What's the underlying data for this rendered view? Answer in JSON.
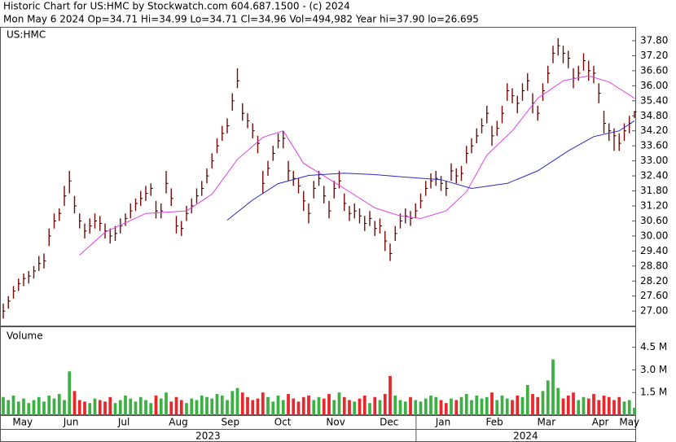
{
  "chart_data": {
    "type": "ohlc",
    "title": "Historic Chart for US:HMC by Stockwatch.com 604.687.1500 - (c) 2024",
    "subtitle": "Mon May  6 2024  Op=34.71  Hi=34.99  Lo=34.71  Cl=34.96  Vol=494,982  Year hi=37.90  lo=26.695",
    "symbol": "US:HMC",
    "volume_label": "Volume",
    "xlim": [
      -0.64,
      124.16
    ],
    "xticks": [
      {
        "value": 3.8,
        "label": "May"
      },
      {
        "value": 13.3,
        "label": "Jun"
      },
      {
        "value": 23.7,
        "label": "Jul"
      },
      {
        "value": 34.4,
        "label": "Aug"
      },
      {
        "value": 44.6,
        "label": "Sep"
      },
      {
        "value": 54.9,
        "label": "Oct"
      },
      {
        "value": 65.3,
        "label": "Nov"
      },
      {
        "value": 75.8,
        "label": "Dec"
      },
      {
        "value": 86.4,
        "label": "Jan"
      },
      {
        "value": 96.5,
        "label": "Feb"
      },
      {
        "value": 106.7,
        "label": "Mar"
      },
      {
        "value": 117.3,
        "label": "Apr"
      },
      {
        "value": 123.0,
        "label": "May"
      }
    ],
    "years": [
      {
        "value": -0.64,
        "label": "2023"
      },
      {
        "value": 81.1,
        "label": "2024"
      }
    ],
    "ylim": [
      26.42,
      38.32
    ],
    "yticks": [
      {
        "value": 27.0,
        "label": "27.00"
      },
      {
        "value": 27.6,
        "label": "27.60"
      },
      {
        "value": 28.2,
        "label": "28.20"
      },
      {
        "value": 28.8,
        "label": "28.80"
      },
      {
        "value": 29.4,
        "label": "29.40"
      },
      {
        "value": 30.0,
        "label": "30.00"
      },
      {
        "value": 30.6,
        "label": "30.60"
      },
      {
        "value": 31.2,
        "label": "31.20"
      },
      {
        "value": 31.8,
        "label": "31.80"
      },
      {
        "value": 32.4,
        "label": "32.40"
      },
      {
        "value": 33.0,
        "label": "33.00"
      },
      {
        "value": 33.6,
        "label": "33.60"
      },
      {
        "value": 34.2,
        "label": "34.20"
      },
      {
        "value": 34.8,
        "label": "34.80"
      },
      {
        "value": 35.4,
        "label": "35.40"
      },
      {
        "value": 36.0,
        "label": "36.00"
      },
      {
        "value": 36.6,
        "label": "36.60"
      },
      {
        "value": 37.2,
        "label": "37.20"
      },
      {
        "value": 37.8,
        "label": "37.80"
      }
    ],
    "color": "#7a0a0a",
    "closes": [
      27.0,
      27.4,
      27.8,
      28.1,
      28.3,
      28.4,
      28.6,
      28.9,
      29.0,
      30.0,
      30.6,
      30.9,
      31.6,
      32.2,
      31.2,
      30.6,
      30.2,
      30.4,
      30.6,
      30.5,
      30.2,
      30.0,
      30.1,
      30.4,
      30.7,
      31.0,
      31.3,
      31.5,
      31.7,
      31.9,
      31.0,
      31.0,
      32.1,
      31.5,
      30.4,
      30.3,
      30.9,
      31.2,
      31.6,
      31.9,
      32.4,
      33.0,
      33.6,
      34.1,
      34.4,
      35.4,
      36.2,
      34.9,
      34.6,
      34.2,
      33.7,
      32.1,
      32.7,
      33.3,
      33.8,
      33.9,
      32.6,
      32.3,
      32.0,
      31.4,
      30.9,
      31.9,
      32.3,
      31.6,
      31.0,
      31.9,
      32.2,
      31.3,
      30.9,
      31.0,
      30.8,
      30.5,
      30.7,
      30.3,
      30.4,
      29.8,
      29.3,
      30.1,
      30.6,
      30.8,
      30.7,
      31.0,
      31.4,
      31.9,
      32.2,
      32.3,
      32.1,
      31.9,
      32.6,
      32.4,
      32.5,
      33.3,
      33.6,
      34.0,
      34.4,
      34.9,
      34.0,
      34.3,
      34.9,
      35.8,
      35.6,
      35.3,
      35.8,
      36.2,
      35.3,
      34.9,
      35.8,
      36.5,
      37.3,
      37.6,
      37.3,
      37.1,
      36.3,
      36.5,
      37.0,
      36.6,
      36.5,
      35.7,
      34.5,
      34.2,
      34.0,
      33.7,
      34.2,
      34.5,
      34.96
    ],
    "highs": [
      27.3,
      27.6,
      28.0,
      28.3,
      28.5,
      28.6,
      28.8,
      29.2,
      29.3,
      30.3,
      30.9,
      31.1,
      32.0,
      32.6,
      31.6,
      30.9,
      30.5,
      30.7,
      30.9,
      30.8,
      30.5,
      30.3,
      30.4,
      30.7,
      30.9,
      31.3,
      31.5,
      31.8,
      32.0,
      32.1,
      31.4,
      31.3,
      32.6,
      31.9,
      30.8,
      30.6,
      31.2,
      31.5,
      31.9,
      32.2,
      32.7,
      33.3,
      33.9,
      34.4,
      34.7,
      35.7,
      36.7,
      35.3,
      34.9,
      34.5,
      34.0,
      32.6,
      33.0,
      33.6,
      34.1,
      34.2,
      33.0,
      32.6,
      32.3,
      31.8,
      31.3,
      32.2,
      32.6,
      32.0,
      31.4,
      32.2,
      32.6,
      31.7,
      31.2,
      31.3,
      31.1,
      30.8,
      31.0,
      30.6,
      30.7,
      30.2,
      29.7,
      30.4,
      30.9,
      31.1,
      31.0,
      31.3,
      31.7,
      32.2,
      32.5,
      32.6,
      32.4,
      32.2,
      32.9,
      32.7,
      32.8,
      33.6,
      33.9,
      34.3,
      34.7,
      35.2,
      34.4,
      34.6,
      35.2,
      36.1,
      35.9,
      35.6,
      36.1,
      36.5,
      35.7,
      35.2,
      36.1,
      36.8,
      37.6,
      37.9,
      37.6,
      37.4,
      36.7,
      36.8,
      37.3,
      37.0,
      36.8,
      36.1,
      35.0,
      34.5,
      34.3,
      34.1,
      34.5,
      34.8,
      34.99
    ],
    "lows": [
      26.7,
      27.1,
      27.5,
      27.8,
      28.0,
      28.1,
      28.3,
      28.6,
      28.7,
      29.6,
      30.3,
      30.6,
      31.2,
      31.7,
      30.9,
      30.3,
      29.9,
      30.1,
      30.3,
      30.2,
      29.9,
      29.7,
      29.8,
      30.1,
      30.4,
      30.7,
      31.0,
      31.2,
      31.4,
      31.6,
      30.7,
      30.7,
      31.7,
      31.2,
      30.1,
      30.0,
      30.6,
      30.9,
      31.3,
      31.6,
      32.1,
      32.7,
      33.3,
      33.8,
      34.1,
      35.0,
      35.9,
      34.6,
      34.3,
      33.9,
      33.3,
      31.7,
      32.4,
      33.0,
      33.5,
      33.5,
      32.2,
      32.0,
      31.7,
      31.0,
      30.5,
      31.5,
      32.0,
      31.3,
      30.7,
      31.5,
      31.9,
      31.0,
      30.6,
      30.7,
      30.5,
      30.2,
      30.4,
      30.0,
      30.1,
      29.4,
      29.0,
      29.8,
      30.3,
      30.5,
      30.4,
      30.7,
      31.1,
      31.6,
      31.9,
      32.0,
      31.8,
      31.6,
      32.2,
      32.1,
      32.2,
      32.9,
      33.3,
      33.7,
      34.1,
      34.5,
      33.6,
      34.0,
      34.5,
      35.4,
      35.3,
      34.9,
      35.4,
      35.8,
      34.9,
      34.6,
      35.4,
      36.1,
      36.9,
      37.2,
      36.9,
      36.7,
      35.9,
      36.2,
      36.6,
      36.2,
      36.1,
      35.3,
      34.1,
      33.8,
      33.4,
      33.4,
      33.8,
      34.1,
      34.71
    ],
    "ma": [
      {
        "color": "#e040e0",
        "x": [
          15,
          20,
          28,
          36,
          41,
          46,
          51,
          55,
          59,
          63,
          68,
          73,
          78,
          82,
          87,
          91,
          95,
          100,
          105,
          110,
          115,
          119,
          124
        ],
        "values": [
          29.24,
          30.15,
          30.9,
          31.0,
          31.67,
          33.06,
          33.94,
          34.2,
          32.9,
          32.4,
          31.77,
          31.12,
          30.8,
          30.7,
          31.0,
          31.77,
          33.23,
          34.2,
          35.5,
          36.2,
          36.4,
          36.15,
          35.5
        ]
      },
      {
        "color": "#2a2ac8",
        "x": [
          44,
          49,
          54,
          60,
          67,
          73,
          79,
          86,
          92,
          99,
          105,
          111,
          116,
          121,
          124
        ],
        "values": [
          30.63,
          31.44,
          32.09,
          32.42,
          32.51,
          32.45,
          32.35,
          32.25,
          31.9,
          32.1,
          32.6,
          33.4,
          33.97,
          34.2,
          34.6
        ]
      }
    ],
    "volume": {
      "ylim": [
        0,
        5.83
      ],
      "yticks": [
        {
          "value": 1.5,
          "label": "1.5 M"
        },
        {
          "value": 3.0,
          "label": "3.0 M"
        },
        {
          "value": 4.5,
          "label": "4.5 M"
        }
      ],
      "up_color": "#3cb043",
      "down_color": "#e8272b",
      "values": [
        1.2,
        1.0,
        1.3,
        0.9,
        1.1,
        0.8,
        1.0,
        1.2,
        0.9,
        1.3,
        1.1,
        1.4,
        1.0,
        2.9,
        1.6,
        1.0,
        0.9,
        0.8,
        1.1,
        1.0,
        0.9,
        1.2,
        0.8,
        1.0,
        1.3,
        1.1,
        0.9,
        1.2,
        1.0,
        0.8,
        1.3,
        1.1,
        1.5,
        0.9,
        1.2,
        1.0,
        0.8,
        1.1,
        1.0,
        1.3,
        1.2,
        1.1,
        1.4,
        1.3,
        1.0,
        1.6,
        1.8,
        1.5,
        1.2,
        1.0,
        1.1,
        1.5,
        1.2,
        0.9,
        1.3,
        1.0,
        1.4,
        1.1,
        0.9,
        1.2,
        1.3,
        1.0,
        1.2,
        1.1,
        1.4,
        1.0,
        1.5,
        1.2,
        1.0,
        0.9,
        1.1,
        1.3,
        0.8,
        1.2,
        1.0,
        1.4,
        2.6,
        1.3,
        1.0,
        0.9,
        1.2,
        1.0,
        0.9,
        1.1,
        1.3,
        1.2,
        1.0,
        0.8,
        1.1,
        1.0,
        1.2,
        1.4,
        1.0,
        1.3,
        1.1,
        1.2,
        1.5,
        1.0,
        1.3,
        1.1,
        1.0,
        1.3,
        1.2,
        2.0,
        1.4,
        1.2,
        1.6,
        2.3,
        3.7,
        1.8,
        1.1,
        1.3,
        1.5,
        1.0,
        1.2,
        1.1,
        1.4,
        1.0,
        1.3,
        1.2,
        1.0,
        1.2,
        0.9,
        1.0,
        0.49
      ]
    }
  }
}
